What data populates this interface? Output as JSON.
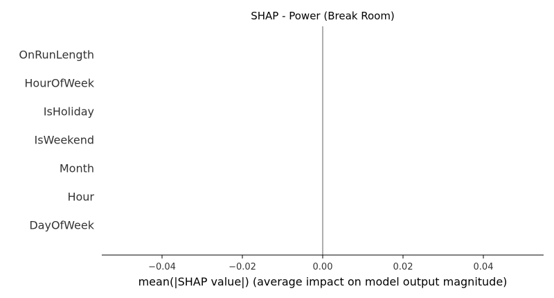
{
  "chart_data": {
    "type": "bar",
    "title": "SHAP - Power (Break Room)",
    "xlabel": "mean(|SHAP value|) (average impact on model output magnitude)",
    "ylabel": "",
    "orientation": "horizontal",
    "categories": [
      "OnRunLength",
      "HourOfWeek",
      "IsHoliday",
      "IsWeekend",
      "Month",
      "Hour",
      "DayOfWeek"
    ],
    "values": [
      0,
      0,
      0,
      0,
      0,
      0,
      0
    ],
    "xlim": [
      -0.055,
      0.055
    ],
    "xticks": [
      -0.04,
      -0.02,
      0.0,
      0.02,
      0.04
    ],
    "xtick_labels": [
      "−0.04",
      "−0.02",
      "0.00",
      "0.02",
      "0.04"
    ],
    "zero_line": true,
    "grid": false,
    "colors": {
      "bar": "#008bfb",
      "zero_line": "#999999",
      "axis": "#000000"
    }
  }
}
